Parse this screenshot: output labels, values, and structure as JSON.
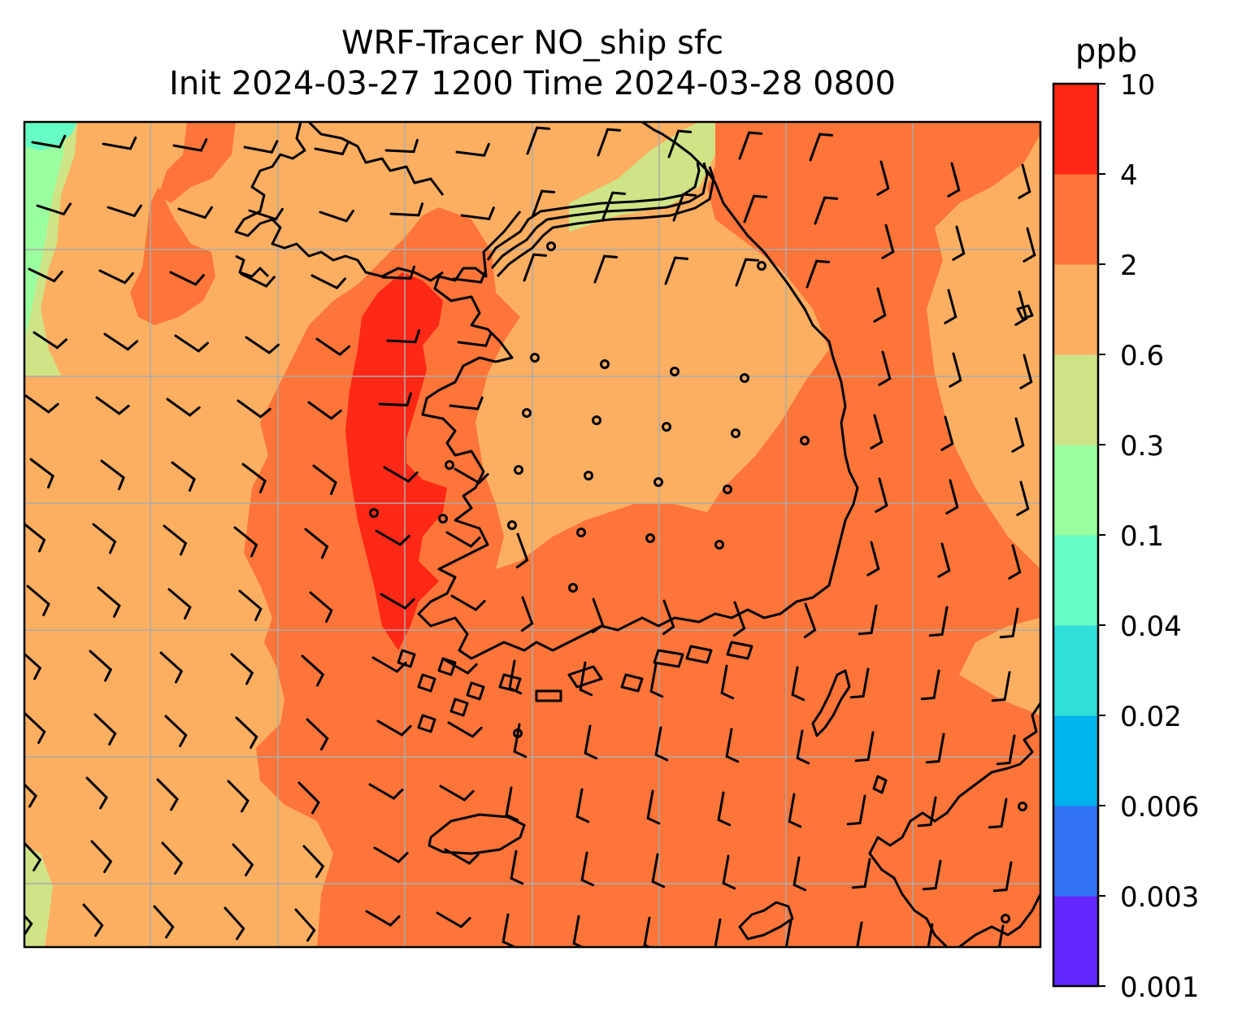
{
  "title": {
    "line1": "WRF-Tracer NO_ship sfc",
    "line2": "Init 2024-03-27 1200 Time 2024-03-28 0800"
  },
  "colorbar": {
    "unit": "ppb",
    "levels": [
      "0.001",
      "0.003",
      "0.006",
      "0.02",
      "0.04",
      "0.1",
      "0.3",
      "0.6",
      "2",
      "4",
      "10"
    ],
    "colors": [
      "#6427fb",
      "#3273f3",
      "#00b2ee",
      "#30e0d8",
      "#66fcc4",
      "#9bfe9e",
      "#cee487",
      "#fdaf61",
      "#fe7539",
      "#fe2816"
    ]
  },
  "map": {
    "fill_colors": {
      "low_green": "#9bfe9e",
      "aqua": "#66fcc4",
      "yellow_green": "#cee487",
      "orange_light": "#fdaf61",
      "orange": "#fe7539",
      "red": "#fe2816"
    },
    "gridline_color": "#aaaaaa",
    "coastline_color": "#000000"
  }
}
